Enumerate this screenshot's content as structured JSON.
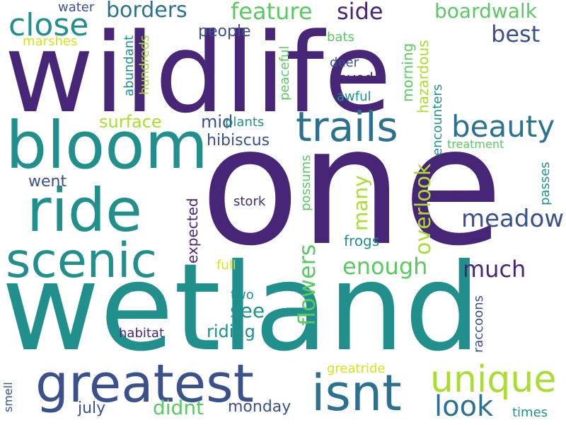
{
  "words": {
    "wildlife": "wildlife",
    "one": "one",
    "wetland": "wetland",
    "bloom": "bloom",
    "ride": "ride",
    "scenic": "scenic",
    "greatest": "greatest",
    "isnt": "isnt",
    "trails": "trails",
    "unique": "unique",
    "beauty": "beauty",
    "close": "close",
    "borders": "borders",
    "feature": "feature",
    "side": "side",
    "boardwalk": "boardwalk",
    "best": "best",
    "meadow": "meadow",
    "look": "look",
    "overlook": "overlook",
    "flowers": "flowers",
    "enough": "enough",
    "much": "much",
    "many": "many",
    "see": "see",
    "riding": "riding",
    "didnt": "didnt",
    "monday": "monday",
    "july": "july",
    "hibiscus": "hibiscus",
    "surface": "surface",
    "mid": "mid",
    "plants": "plants",
    "people": "people",
    "water": "water",
    "marshes": "marshes",
    "abundant": "abundant",
    "hundreds": "hundreds",
    "peaceful": "peaceful",
    "bats": "bats",
    "deer": "deer",
    "paved": "paved",
    "awful": "awful",
    "morning": "morning",
    "hazardous": "hazardous",
    "encounters": "encounters",
    "treatment": "treatment",
    "went": "went",
    "expected": "expected",
    "stork": "stork",
    "possums": "possums",
    "passes": "passes",
    "frogs": "frogs",
    "full": "full",
    "two": "two",
    "habitat": "habitat",
    "raccoons": "raccoons",
    "greatride": "greatride",
    "smell": "smell",
    "times": "times"
  }
}
